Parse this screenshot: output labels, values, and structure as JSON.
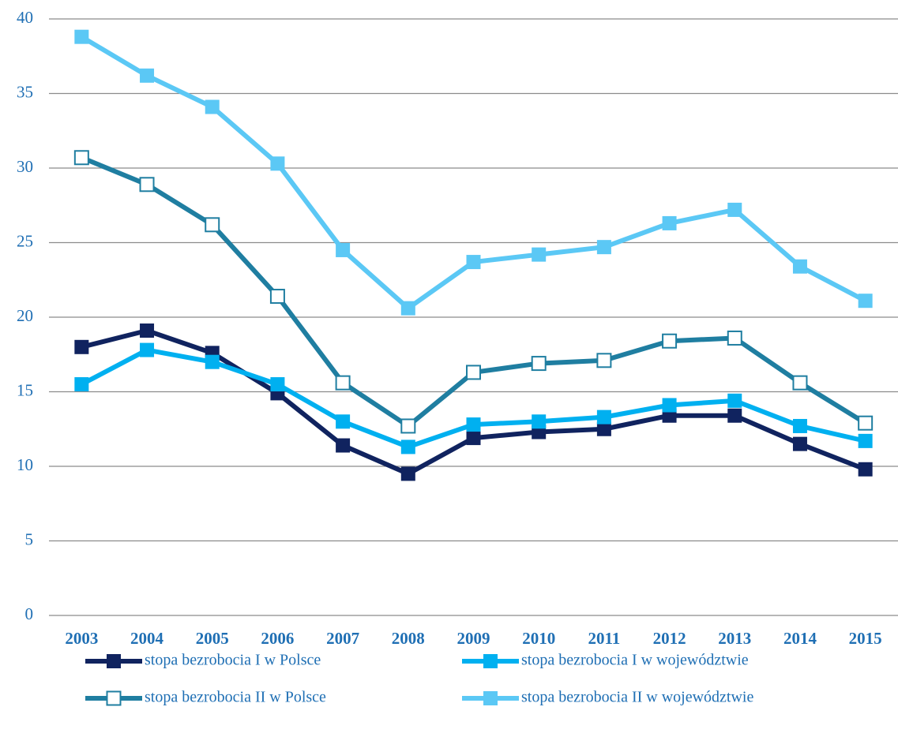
{
  "chart_data": {
    "type": "line",
    "categories": [
      "2003",
      "2004",
      "2005",
      "2006",
      "2007",
      "2008",
      "2009",
      "2010",
      "2011",
      "2012",
      "2013",
      "2014",
      "2015"
    ],
    "series": [
      {
        "name": "stopa bezrobocia I w Polsce",
        "color": "#10235f",
        "marker": "filled",
        "values": [
          18.0,
          19.1,
          17.6,
          14.9,
          11.4,
          9.5,
          11.9,
          12.3,
          12.5,
          13.4,
          13.4,
          11.5,
          9.8
        ]
      },
      {
        "name": "stopa bezrobocia I w województwie",
        "color": "#00b0f0",
        "marker": "filled",
        "values": [
          15.5,
          17.8,
          17.0,
          15.5,
          13.0,
          11.3,
          12.8,
          13.0,
          13.3,
          14.1,
          14.4,
          12.7,
          11.7
        ]
      },
      {
        "name": "stopa bezrobocia II w Polsce",
        "color": "#1f7ea1",
        "marker": "open",
        "values": [
          30.7,
          28.9,
          26.2,
          21.4,
          15.6,
          12.7,
          16.3,
          16.9,
          17.1,
          18.4,
          18.6,
          15.6,
          12.9
        ]
      },
      {
        "name": "stopa bezrobocia II w województwie",
        "color": "#5bc8f5",
        "marker": "filled",
        "values": [
          38.8,
          36.2,
          34.1,
          30.3,
          24.5,
          20.6,
          23.7,
          24.2,
          24.7,
          26.3,
          27.2,
          23.4,
          21.1
        ]
      }
    ],
    "ylim": [
      0,
      40
    ],
    "yticks": [
      0,
      5,
      10,
      15,
      20,
      25,
      30,
      35,
      40
    ],
    "grid": true
  }
}
